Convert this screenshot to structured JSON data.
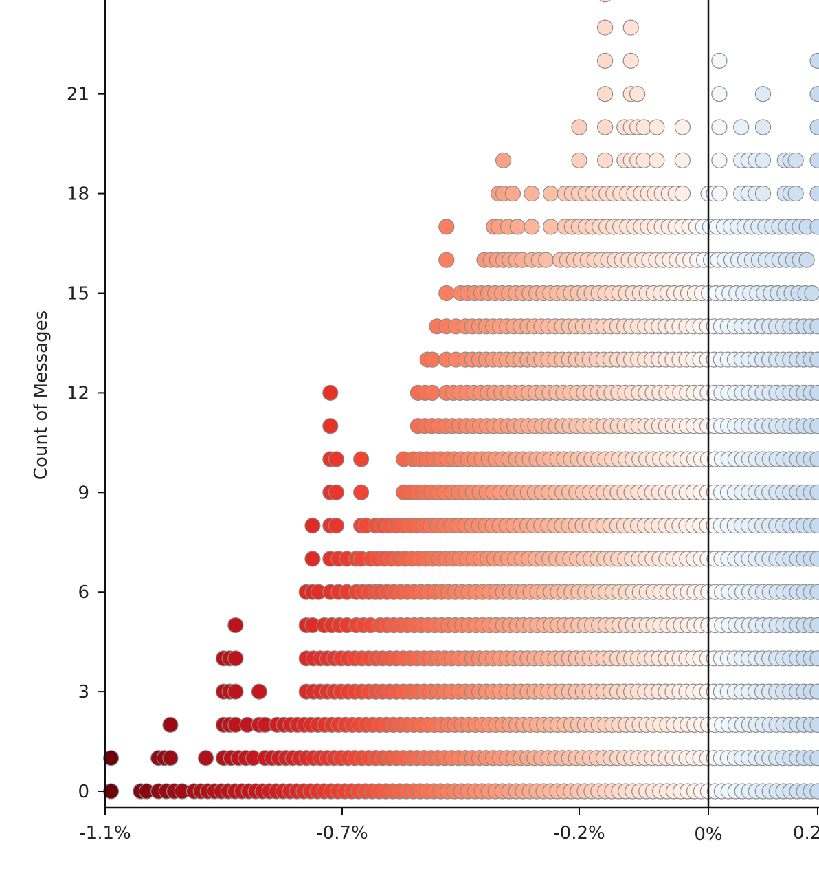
{
  "chart_data": {
    "type": "scatter",
    "title": "",
    "xlabel": "",
    "ylabel": "Count of Messages",
    "x_unit": "%",
    "x_ticks": [
      {
        "value": -1.1,
        "label": "-1.1%"
      },
      {
        "value": -0.7,
        "label": "-0.7%"
      },
      {
        "value": -0.2,
        "label": "-0.2%"
      },
      {
        "value": 0,
        "label": "0%"
      },
      {
        "value": 0.2,
        "label": "0.2%"
      }
    ],
    "y_ticks": [
      0,
      3,
      6,
      9,
      12,
      15,
      18,
      21
    ],
    "xlim": [
      -1.1,
      0.2
    ],
    "ylim": [
      -0.5,
      24
    ],
    "grid": false,
    "reference_line_x": 0,
    "color_scale": {
      "negative": "Reds",
      "positive": "Blues",
      "neg_dark": "#67000d",
      "neg_light": "#fff5f0",
      "pos_light": "#f7fbff",
      "pos_dark": "#c6dbef"
    },
    "rows": [
      {
        "count": 0,
        "runs": [
          [
            -1.09,
            -1.09
          ],
          [
            -1.04,
            -1.03
          ],
          [
            -1.01,
            -0.97
          ],
          [
            -0.95,
            0.2
          ]
        ]
      },
      {
        "count": 1,
        "runs": [
          [
            -1.09,
            -1.09
          ],
          [
            -1.01,
            -0.99
          ],
          [
            -0.93,
            -0.93
          ],
          [
            -0.9,
            -0.85
          ],
          [
            -0.83,
            0.2
          ]
        ]
      },
      {
        "count": 2,
        "runs": [
          [
            -0.99,
            -0.99
          ],
          [
            -0.9,
            -0.88
          ],
          [
            -0.86,
            -0.86
          ],
          [
            -0.84,
            -0.83
          ],
          [
            -0.81,
            0.2
          ]
        ]
      },
      {
        "count": 3,
        "runs": [
          [
            -0.9,
            -0.88
          ],
          [
            -0.84,
            -0.84
          ],
          [
            -0.76,
            0.2
          ]
        ]
      },
      {
        "count": 4,
        "runs": [
          [
            -0.9,
            -0.88
          ],
          [
            -0.76,
            0.2
          ]
        ]
      },
      {
        "count": 5,
        "runs": [
          [
            -0.88,
            -0.88
          ],
          [
            -0.76,
            -0.75
          ],
          [
            -0.73,
            -0.69
          ],
          [
            -0.67,
            -0.64
          ],
          [
            -0.62,
            0.2
          ]
        ]
      },
      {
        "count": 6,
        "runs": [
          [
            -0.76,
            -0.74
          ],
          [
            -0.72,
            -0.69
          ],
          [
            -0.67,
            -0.63
          ],
          [
            -0.62,
            0.2
          ]
        ]
      },
      {
        "count": 7,
        "runs": [
          [
            -0.75,
            -0.75
          ],
          [
            -0.72,
            -0.69
          ],
          [
            -0.67,
            -0.66
          ],
          [
            -0.64,
            0.2
          ]
        ]
      },
      {
        "count": 8,
        "runs": [
          [
            -0.75,
            -0.75
          ],
          [
            -0.72,
            -0.71
          ],
          [
            -0.66,
            -0.65
          ],
          [
            -0.63,
            0.2
          ]
        ]
      },
      {
        "count": 9,
        "runs": [
          [
            -0.72,
            -0.71
          ],
          [
            -0.66,
            -0.66
          ],
          [
            -0.57,
            0.2
          ]
        ]
      },
      {
        "count": 10,
        "runs": [
          [
            -0.72,
            -0.71
          ],
          [
            -0.66,
            -0.66
          ],
          [
            -0.57,
            -0.57
          ],
          [
            -0.55,
            0.2
          ]
        ]
      },
      {
        "count": 11,
        "runs": [
          [
            -0.72,
            -0.72
          ],
          [
            -0.54,
            0.2
          ]
        ]
      },
      {
        "count": 12,
        "runs": [
          [
            -0.72,
            -0.72
          ],
          [
            -0.54,
            -0.51
          ],
          [
            -0.48,
            0.2
          ]
        ]
      },
      {
        "count": 13,
        "runs": [
          [
            -0.52,
            -0.51
          ],
          [
            -0.48,
            -0.46
          ],
          [
            -0.44,
            0.2
          ]
        ]
      },
      {
        "count": 14,
        "runs": [
          [
            -0.5,
            -0.5
          ],
          [
            -0.48,
            -0.46
          ],
          [
            -0.44,
            0.2
          ]
        ]
      },
      {
        "count": 15,
        "runs": [
          [
            -0.48,
            -0.48
          ],
          [
            -0.45,
            0.19
          ]
        ]
      },
      {
        "count": 16,
        "runs": [
          [
            -0.48,
            -0.48
          ],
          [
            -0.4,
            -0.32
          ],
          [
            -0.3,
            -0.27
          ],
          [
            -0.24,
            0.18
          ]
        ]
      },
      {
        "count": 17,
        "runs": [
          [
            -0.48,
            -0.48
          ],
          [
            -0.38,
            -0.37
          ],
          [
            -0.35,
            -0.33
          ],
          [
            -0.3,
            -0.3
          ],
          [
            -0.26,
            -0.26
          ],
          [
            -0.23,
            0.18
          ],
          [
            0.2,
            0.2
          ]
        ]
      },
      {
        "count": 18,
        "runs": [
          [
            -0.37,
            -0.36
          ],
          [
            -0.34,
            -0.34
          ],
          [
            -0.3,
            -0.3
          ],
          [
            -0.26,
            -0.26
          ],
          [
            -0.23,
            -0.04
          ],
          [
            0.0,
            0.02
          ],
          [
            0.06,
            0.1
          ],
          [
            0.14,
            0.16
          ],
          [
            0.2,
            0.2
          ]
        ]
      },
      {
        "count": 19,
        "runs": [
          [
            -0.36,
            -0.36
          ],
          [
            -0.2,
            -0.2
          ],
          [
            -0.16,
            -0.16
          ],
          [
            -0.13,
            -0.1
          ],
          [
            -0.08,
            -0.08
          ],
          [
            -0.04,
            -0.04
          ],
          [
            0.02,
            0.02
          ],
          [
            0.06,
            0.1
          ],
          [
            0.14,
            0.16
          ],
          [
            0.2,
            0.2
          ]
        ]
      },
      {
        "count": 20,
        "runs": [
          [
            -0.2,
            -0.2
          ],
          [
            -0.16,
            -0.16
          ],
          [
            -0.13,
            -0.1
          ],
          [
            -0.08,
            -0.08
          ],
          [
            -0.04,
            -0.04
          ],
          [
            0.02,
            0.02
          ],
          [
            0.06,
            0.06
          ],
          [
            0.1,
            0.1
          ],
          [
            0.2,
            0.2
          ]
        ]
      },
      {
        "count": 21,
        "runs": [
          [
            -0.16,
            -0.16
          ],
          [
            -0.12,
            -0.11
          ],
          [
            0.02,
            0.02
          ],
          [
            0.1,
            0.1
          ],
          [
            0.2,
            0.2
          ]
        ]
      },
      {
        "count": 22,
        "runs": [
          [
            -0.16,
            -0.16
          ],
          [
            -0.12,
            -0.12
          ],
          [
            0.02,
            0.02
          ],
          [
            0.2,
            0.2
          ]
        ]
      },
      {
        "count": 23,
        "runs": [
          [
            -0.16,
            -0.16
          ],
          [
            -0.12,
            -0.12
          ]
        ]
      },
      {
        "count": 24,
        "runs": [
          [
            -0.16,
            -0.16
          ]
        ]
      }
    ]
  }
}
